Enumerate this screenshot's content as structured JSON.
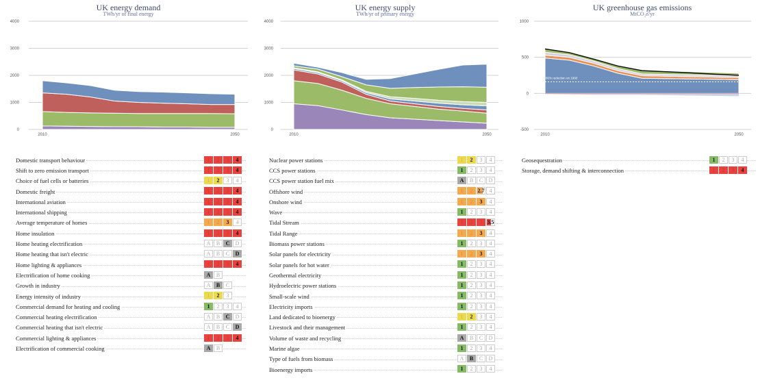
{
  "level_colors": {
    "1": "#85bb65",
    "2": "#ecd94e",
    "3": "#f4a94e",
    "4": "#e8423f",
    "letter": "#a9a9a9"
  },
  "charts": [
    {
      "id": "demand",
      "title": "UK energy demand",
      "subtitle": "TWh/yr of final energy"
    },
    {
      "id": "supply",
      "title": "UK energy supply",
      "subtitle": "TWh/yr of primary energy"
    },
    {
      "id": "emissions",
      "title": "UK greenhouse gas emissions",
      "subtitle": "MtCO₂e/yr"
    }
  ],
  "chart_data": [
    {
      "type": "area",
      "title": "UK energy demand",
      "subtitle": "TWh/yr of final energy",
      "x": [
        2010,
        2015,
        2020,
        2025,
        2030,
        2035,
        2040,
        2045,
        2050
      ],
      "xticks": [
        "2010",
        "2050"
      ],
      "ylim": [
        0,
        4000
      ],
      "yticks": [
        "0",
        "1000",
        "2000",
        "3000",
        "4000"
      ],
      "grid": true,
      "series": [
        {
          "color": "#9a86b8",
          "values": [
            130,
            120,
            110,
            100,
            100,
            90,
            90,
            80,
            80
          ]
        },
        {
          "color": "#9cbb69",
          "values": [
            530,
            510,
            500,
            500,
            490,
            500,
            500,
            510,
            500
          ]
        },
        {
          "color": "#c0605c",
          "values": [
            690,
            670,
            590,
            450,
            410,
            380,
            360,
            330,
            340
          ]
        },
        {
          "color": "#6f8fbd",
          "values": [
            450,
            420,
            420,
            400,
            400,
            410,
            400,
            400,
            380
          ]
        }
      ]
    },
    {
      "type": "area",
      "title": "UK energy supply",
      "subtitle": "TWh/yr of primary energy",
      "x": [
        2010,
        2015,
        2020,
        2025,
        2030,
        2035,
        2040,
        2045,
        2050
      ],
      "xticks": [
        "2010",
        "2050"
      ],
      "ylim": [
        0,
        4000
      ],
      "yticks": [
        "0",
        "1000",
        "2000",
        "3000",
        "4000"
      ],
      "grid": true,
      "series": [
        {
          "color": "#9a86b8",
          "values": [
            950,
            880,
            720,
            550,
            430,
            380,
            330,
            280,
            230
          ]
        },
        {
          "color": "#9cbb69",
          "values": [
            850,
            820,
            730,
            600,
            520,
            470,
            420,
            400,
            370
          ]
        },
        {
          "color": "#c0605c",
          "values": [
            400,
            350,
            300,
            150,
            100,
            100,
            100,
            100,
            120
          ]
        },
        {
          "color": "#6f8fbd",
          "values": [
            50,
            50,
            50,
            60,
            80,
            100,
            120,
            130,
            150
          ]
        },
        {
          "color": "#c9dcb6",
          "values": [
            30,
            30,
            30,
            50,
            80,
            100,
            110,
            120,
            130
          ]
        },
        {
          "color": "#9cbb69",
          "values": [
            70,
            100,
            120,
            240,
            310,
            400,
            490,
            550,
            560
          ]
        },
        {
          "color": "#6f8fbd",
          "values": [
            100,
            70,
            150,
            200,
            360,
            500,
            650,
            800,
            850
          ]
        }
      ]
    },
    {
      "type": "area",
      "title": "UK greenhouse gas emissions",
      "subtitle": "MtCO₂e/yr",
      "x": [
        2010,
        2015,
        2020,
        2025,
        2030,
        2035,
        2040,
        2045,
        2050
      ],
      "xticks": [
        "2010",
        "2050"
      ],
      "ylim": [
        -500,
        1000
      ],
      "yticks": [
        "-500",
        "0",
        "500",
        "1000"
      ],
      "grid": true,
      "series": [
        {
          "color": "#6f8fbd",
          "values": [
            490,
            460,
            380,
            280,
            210,
            205,
            200,
            195,
            190
          ]
        },
        {
          "color": "#e8935a",
          "values": [
            40,
            40,
            38,
            35,
            35,
            33,
            32,
            30,
            30
          ]
        },
        {
          "color": "#d8cfe0",
          "values": [
            40,
            35,
            30,
            30,
            25,
            25,
            25,
            25,
            25
          ]
        },
        {
          "color": "#9cbb69",
          "values": [
            50,
            40,
            42,
            45,
            50,
            47,
            43,
            40,
            35
          ]
        }
      ],
      "negative": {
        "color": "#c6d6ea",
        "values": [
          -10,
          -15,
          -20,
          -20,
          -20,
          -25,
          -30,
          -35,
          -40
        ]
      },
      "total_line": {
        "color": "#111",
        "values": [
          615,
          565,
          475,
          380,
          315,
          300,
          285,
          265,
          250
        ]
      },
      "target": {
        "label": "80% reduction on 1990",
        "value": 160
      }
    }
  ],
  "levers": {
    "demand": [
      {
        "label": "Domestic transport behaviour",
        "options": [
          "1",
          "2",
          "3",
          "4"
        ],
        "value": "4"
      },
      {
        "label": "Shift to zero emission transport",
        "options": [
          "1",
          "2",
          "3",
          "4"
        ],
        "value": "4"
      },
      {
        "label": "Choice of fuel cells or batteries",
        "options": [
          "1",
          "2",
          "3",
          "4"
        ],
        "value": "2"
      },
      {
        "label": "Domestic freight",
        "options": [
          "1",
          "2",
          "3",
          "4"
        ],
        "value": "4"
      },
      {
        "label": "International aviation",
        "options": [
          "1",
          "2",
          "3",
          "4"
        ],
        "value": "4"
      },
      {
        "label": "International shipping",
        "options": [
          "1",
          "2",
          "3",
          "4"
        ],
        "value": "4"
      },
      {
        "label": "Average temperature of homes",
        "options": [
          "1",
          "2",
          "3",
          "4"
        ],
        "value": "3"
      },
      {
        "label": "Home insulation",
        "options": [
          "1",
          "2",
          "3",
          "4"
        ],
        "value": "4"
      },
      {
        "label": "Home heating electrification",
        "options": [
          "A",
          "B",
          "C",
          "D"
        ],
        "value": "C"
      },
      {
        "label": "Home heating that isn't electric",
        "options": [
          "A",
          "B",
          "C",
          "D"
        ],
        "value": "D"
      },
      {
        "label": "Home lighting & appliances",
        "options": [
          "1",
          "2",
          "3",
          "4"
        ],
        "value": "4"
      },
      {
        "label": "Electrification of home cooking",
        "options": [
          "A",
          "B"
        ],
        "value": "A"
      },
      {
        "label": "Growth in industry",
        "options": [
          "A",
          "B",
          "C"
        ],
        "value": "B"
      },
      {
        "label": "Energy intensity of industry",
        "options": [
          "1",
          "2",
          "3"
        ],
        "value": "2"
      },
      {
        "label": "Commercial demand for heating and cooling",
        "options": [
          "1",
          "2",
          "3",
          "4"
        ],
        "value": "1"
      },
      {
        "label": "Commercial heating electrification",
        "options": [
          "A",
          "B",
          "C",
          "D"
        ],
        "value": "C"
      },
      {
        "label": "Commercial heating that isn't electric",
        "options": [
          "A",
          "B",
          "C",
          "D"
        ],
        "value": "D"
      },
      {
        "label": "Commercial lighting & appliances",
        "options": [
          "1",
          "2",
          "3",
          "4"
        ],
        "value": "4"
      },
      {
        "label": "Electrification of commercial cooking",
        "options": [
          "A",
          "B"
        ],
        "value": "A"
      }
    ],
    "supply": [
      {
        "label": "Nuclear power stations",
        "options": [
          "1",
          "2",
          "3",
          "4"
        ],
        "value": "2"
      },
      {
        "label": "CCS power stations",
        "options": [
          "1",
          "2",
          "3",
          "4"
        ],
        "value": "1"
      },
      {
        "label": "CCS power station fuel mix",
        "options": [
          "A",
          "B",
          "C",
          "D"
        ],
        "value": "A"
      },
      {
        "label": "Offshore wind",
        "options": [
          "1",
          "2",
          "3",
          "4"
        ],
        "value": "2.7"
      },
      {
        "label": "Onshore wind",
        "options": [
          "1",
          "2",
          "3",
          "4"
        ],
        "value": "3"
      },
      {
        "label": "Wave",
        "options": [
          "1",
          "2",
          "3",
          "4"
        ],
        "value": "1"
      },
      {
        "label": "Tidal Stream",
        "options": [
          "1",
          "2",
          "3",
          "4"
        ],
        "value": "3.5"
      },
      {
        "label": "Tidal Range",
        "options": [
          "1",
          "2",
          "3",
          "4"
        ],
        "value": "3"
      },
      {
        "label": "Biomass power stations",
        "options": [
          "1",
          "2",
          "3",
          "4"
        ],
        "value": "1"
      },
      {
        "label": "Solar panels for electricity",
        "options": [
          "1",
          "2",
          "3",
          "4"
        ],
        "value": "3"
      },
      {
        "label": "Solar panels for hot water",
        "options": [
          "1",
          "2",
          "3",
          "4"
        ],
        "value": "1"
      },
      {
        "label": "Geothermal electricity",
        "options": [
          "1",
          "2",
          "3",
          "4"
        ],
        "value": "1"
      },
      {
        "label": "Hydroelectric power stations",
        "options": [
          "1",
          "2",
          "3",
          "4"
        ],
        "value": "1"
      },
      {
        "label": "Small-scale wind",
        "options": [
          "1",
          "2",
          "3",
          "4"
        ],
        "value": "1"
      },
      {
        "label": "Electricity imports",
        "options": [
          "1",
          "2",
          "3",
          "4"
        ],
        "value": "1"
      },
      {
        "label": "Land dedicated to bioenergy",
        "options": [
          "1",
          "2",
          "3",
          "4"
        ],
        "value": "2"
      },
      {
        "label": "Livestock and their management",
        "options": [
          "1",
          "2",
          "3",
          "4"
        ],
        "value": "1"
      },
      {
        "label": "Volume of waste and recycling",
        "options": [
          "A",
          "B",
          "C",
          "D"
        ],
        "value": "A"
      },
      {
        "label": "Marine algae",
        "options": [
          "1",
          "2",
          "3",
          "4"
        ],
        "value": "1"
      },
      {
        "label": "Type of fuels from biomass",
        "options": [
          "A",
          "B",
          "C",
          "D"
        ],
        "value": "B"
      },
      {
        "label": "Bioenergy imports",
        "options": [
          "1",
          "2",
          "3",
          "4"
        ],
        "value": "1"
      }
    ],
    "other": [
      {
        "label": "Geosequestration",
        "options": [
          "1",
          "2",
          "3",
          "4"
        ],
        "value": "1"
      },
      {
        "label": "Storage, demand shifting & interconnection",
        "options": [
          "1",
          "2",
          "3",
          "4"
        ],
        "value": "4"
      }
    ]
  }
}
